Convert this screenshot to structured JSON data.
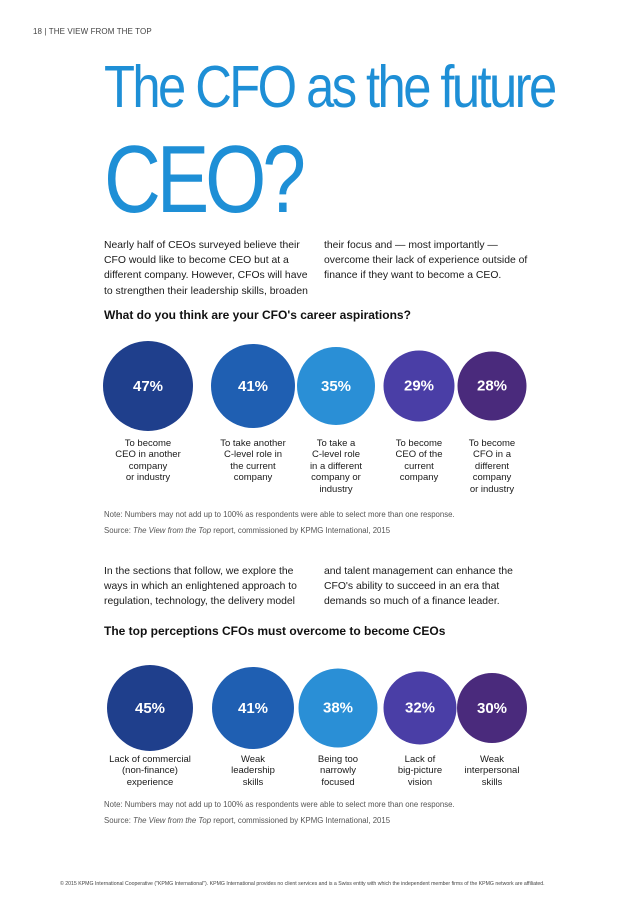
{
  "header": {
    "running_head": "18 | THE VIEW FROM THE TOP"
  },
  "title": {
    "line1": "The CFO as the future",
    "line2": "CEO?"
  },
  "intro": {
    "col1": "Nearly half of CEOs surveyed believe their CFO would like to become CEO but at a different company. However, CFOs will have to strengthen their leadership skills, broaden",
    "col2": "their focus and — most importantly — overcome their lack of experience outside of finance if they want to become a CEO."
  },
  "chart_data": [
    {
      "type": "bubble",
      "title": "What do you think are your CFO's career aspirations?",
      "categories": [
        "To become\nCEO in another\ncompany\nor industry",
        "To take another\nC-level role in\nthe current\ncompany",
        "To take a\nC-level role\nin a different\ncompany or\nindustry",
        "To become\nCEO of the\ncurrent\ncompany",
        "To become\nCFO in a\ndifferent\ncompany\nor industry"
      ],
      "values": [
        47,
        41,
        35,
        29,
        28
      ],
      "value_labels": [
        "47%",
        "41%",
        "35%",
        "29%",
        "28%"
      ],
      "colors": [
        "#1f3f8c",
        "#1f5fb2",
        "#2a8fd6",
        "#4a3ea6",
        "#4a2a7c"
      ]
    },
    {
      "type": "bubble",
      "title": "The top perceptions CFOs must overcome to become CEOs",
      "categories": [
        "Lack of commercial\n(non-finance)\nexperience",
        "Weak\nleadership\nskills",
        "Being too\nnarrowly\nfocused",
        "Lack of\nbig-picture\nvision",
        "Weak\ninterpersonal\nskills"
      ],
      "values": [
        45,
        41,
        38,
        32,
        30
      ],
      "value_labels": [
        "45%",
        "41%",
        "38%",
        "32%",
        "30%"
      ],
      "colors": [
        "#1f3f8c",
        "#1f5fb2",
        "#2a8fd6",
        "#4a3ea6",
        "#4a2a7c"
      ]
    }
  ],
  "notes": {
    "note1": "Note: Numbers may not add up to 100% as respondents were able to select more than one response.",
    "source1_prefix": "Source: ",
    "source1_italic": "The View from the Top",
    "source1_suffix": " report, commissioned by KPMG International, 2015",
    "note2": "Note: Numbers may not add up to 100% as respondents were able to select more than one response.",
    "source2_prefix": "Source: ",
    "source2_italic": "The View from the Top",
    "source2_suffix": " report, commissioned by KPMG International, 2015"
  },
  "middle": {
    "col1": "In the sections that follow, we explore the ways in which an enlightened approach to regulation, technology, the delivery model",
    "col2": "and talent management can enhance the CFO's ability to succeed in an era that demands so much of a finance leader."
  },
  "footer": {
    "text": "© 2015 KPMG International Cooperative (\"KPMG International\"). KPMG International provides no client services and is a Swiss entity with which the independent member firms of the KPMG network are affiliated."
  }
}
